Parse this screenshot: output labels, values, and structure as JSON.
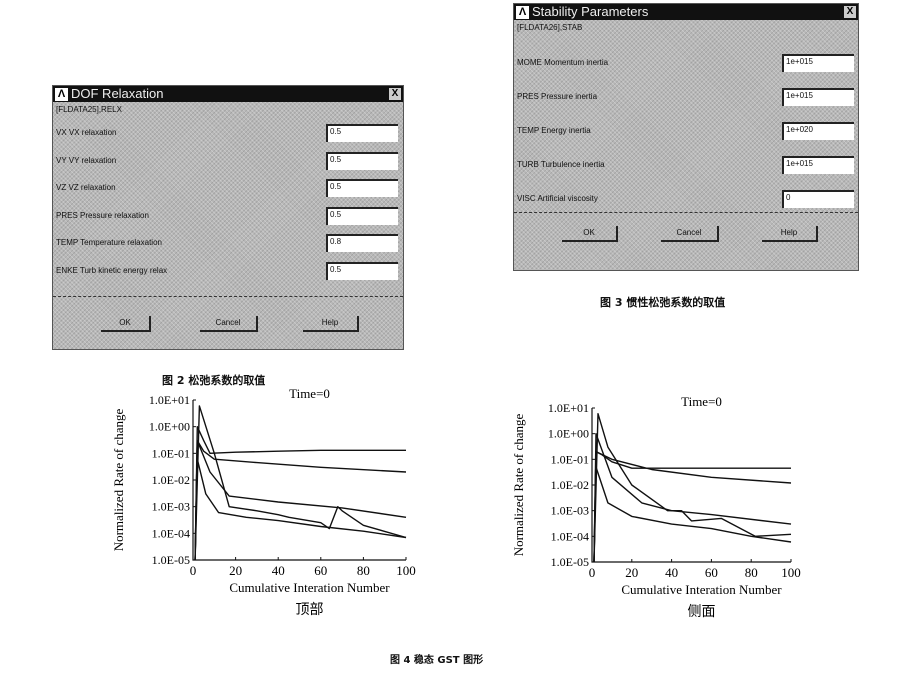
{
  "dialog_relax": {
    "title": "DOF Relaxation",
    "command": "[FLDATA25],RELX",
    "close": "X",
    "rows": [
      {
        "label": "VX   VX relaxation",
        "value": "0.5"
      },
      {
        "label": "VY   VY relaxation",
        "value": "0.5"
      },
      {
        "label": "VZ   VZ relaxation",
        "value": "0.5"
      },
      {
        "label": "PRES  Pressure relaxation",
        "value": "0.5"
      },
      {
        "label": "TEMP  Temperature relaxation",
        "value": "0.8"
      },
      {
        "label": "ENKE  Turb kinetic energy relax",
        "value": "0.5"
      }
    ],
    "ok": "OK",
    "cancel": "Cancel",
    "help": "Help"
  },
  "dialog_stab": {
    "title": "Stability Parameters",
    "command": "[FLDATA26],STAB",
    "close": "X",
    "rows": [
      {
        "label": "MOME  Momentum inertia",
        "value": "1e+015"
      },
      {
        "label": "PRES  Pressure inertia",
        "value": "1e+015"
      },
      {
        "label": "TEMP  Energy inertia",
        "value": "1e+020"
      },
      {
        "label": "TURB  Turbulence inertia",
        "value": "1e+015"
      },
      {
        "label": "VISC  Artificial viscosity",
        "value": "0"
      }
    ],
    "ok": "OK",
    "cancel": "Cancel",
    "help": "Help"
  },
  "captions": {
    "fig2": "图 2   松弛系数的取值",
    "fig3": "图 3   惯性松弛系数的取值",
    "fig4": "图 4   稳态 GST 图形"
  },
  "chart_data": [
    {
      "type": "line",
      "title": "Time=0",
      "subtitle": "顶部",
      "xlabel": "Cumulative Interation Number",
      "ylabel": "Normalized Rate of change",
      "xlim": [
        0,
        100
      ],
      "ylim": [
        1e-05,
        10
      ],
      "yscale": "log",
      "grid": false,
      "xticks": [
        "0",
        "20",
        "40",
        "60",
        "80",
        "100"
      ],
      "yticks": [
        "1.0E-05",
        "1.0E-04",
        "1.0E-03",
        "1.0E-02",
        "1.0E-01",
        "1.0E+00",
        "1.0E+01"
      ],
      "series": [
        {
          "x": [
            1,
            2,
            5,
            8,
            20,
            40,
            60,
            80,
            100
          ],
          "y": [
            1e-05,
            1.0,
            0.3,
            0.1,
            0.11,
            0.12,
            0.13,
            0.13,
            0.13
          ]
        },
        {
          "x": [
            1,
            2,
            5,
            10,
            30,
            60,
            100
          ],
          "y": [
            1e-05,
            0.3,
            0.12,
            0.06,
            0.045,
            0.03,
            0.02
          ]
        },
        {
          "x": [
            1,
            3,
            10,
            17,
            30,
            40,
            45,
            60,
            64,
            68,
            70,
            80,
            100
          ],
          "y": [
            1e-05,
            6,
            0.1,
            0.001,
            0.0007,
            0.0005,
            0.0004,
            0.00025,
            0.00015,
            0.001,
            0.0007,
            0.0002,
            7e-05
          ]
        },
        {
          "x": [
            1,
            2,
            8,
            17,
            40,
            70,
            100
          ],
          "y": [
            1e-05,
            0.3,
            0.02,
            0.0025,
            0.0015,
            0.0009,
            0.0004
          ]
        },
        {
          "x": [
            1,
            2,
            6,
            12,
            25,
            40,
            60,
            80,
            100
          ],
          "y": [
            1e-05,
            0.06,
            0.003,
            0.0006,
            0.0004,
            0.0003,
            0.00018,
            0.00012,
            7e-05
          ]
        }
      ]
    },
    {
      "type": "line",
      "title": "Time=0",
      "subtitle": "侧面",
      "xlabel": "Cumulative Interation Number",
      "ylabel": "Normalized Rate of change",
      "xlim": [
        0,
        100
      ],
      "ylim": [
        1e-05,
        10
      ],
      "yscale": "log",
      "grid": false,
      "xticks": [
        "0",
        "20",
        "40",
        "60",
        "80",
        "100"
      ],
      "yticks": [
        "1.0E-05",
        "1.0E-04",
        "1.0E-03",
        "1.0E-02",
        "1.0E-01",
        "1.0E+00",
        "1.0E+01"
      ],
      "series": [
        {
          "x": [
            1,
            2,
            5,
            10,
            20,
            40,
            60,
            80,
            100
          ],
          "y": [
            1e-05,
            0.2,
            0.15,
            0.08,
            0.045,
            0.045,
            0.045,
            0.045,
            0.045
          ]
        },
        {
          "x": [
            1,
            2,
            10,
            30,
            60,
            100
          ],
          "y": [
            1e-05,
            0.2,
            0.1,
            0.04,
            0.02,
            0.012
          ]
        },
        {
          "x": [
            1,
            3,
            8,
            20,
            38,
            45,
            50,
            65,
            82,
            100
          ],
          "y": [
            1e-05,
            6,
            0.3,
            0.01,
            0.001,
            0.001,
            0.0004,
            0.0005,
            0.0001,
            0.00012
          ]
        },
        {
          "x": [
            1,
            2,
            10,
            25,
            40,
            60,
            100
          ],
          "y": [
            1e-05,
            1.0,
            0.02,
            0.002,
            0.001,
            0.0007,
            0.0003
          ]
        },
        {
          "x": [
            1,
            2,
            8,
            20,
            40,
            60,
            80,
            100
          ],
          "y": [
            1e-05,
            0.05,
            0.002,
            0.0006,
            0.0003,
            0.0002,
            0.0001,
            6e-05
          ]
        }
      ]
    }
  ]
}
